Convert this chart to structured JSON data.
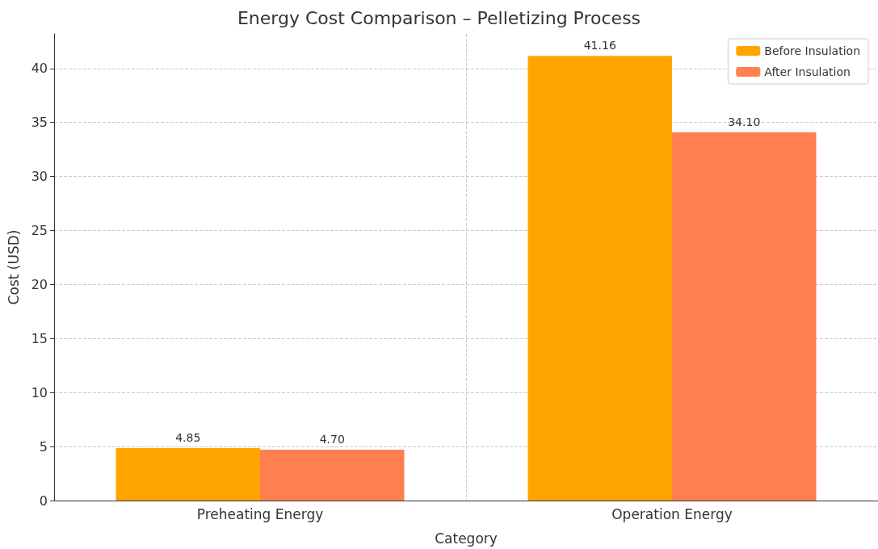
{
  "chart_data": {
    "type": "bar",
    "title": "Energy Cost Comparison – Pelletizing Process",
    "xlabel": "Category",
    "ylabel": "Cost (USD)",
    "categories": [
      "Preheating Energy",
      "Operation Energy"
    ],
    "series": [
      {
        "name": "Before Insulation",
        "color": "#ffa500",
        "values": [
          4.85,
          41.16
        ],
        "value_labels": [
          "4.85",
          "41.16"
        ]
      },
      {
        "name": "After Insulation",
        "color": "#ff7f50",
        "values": [
          4.7,
          34.1
        ],
        "value_labels": [
          "4.70",
          "34.10"
        ]
      }
    ],
    "ylim": [
      0,
      43.2
    ],
    "yticks": [
      0,
      5,
      10,
      15,
      20,
      25,
      30,
      35,
      40
    ],
    "grid": true,
    "legend": "top right"
  }
}
